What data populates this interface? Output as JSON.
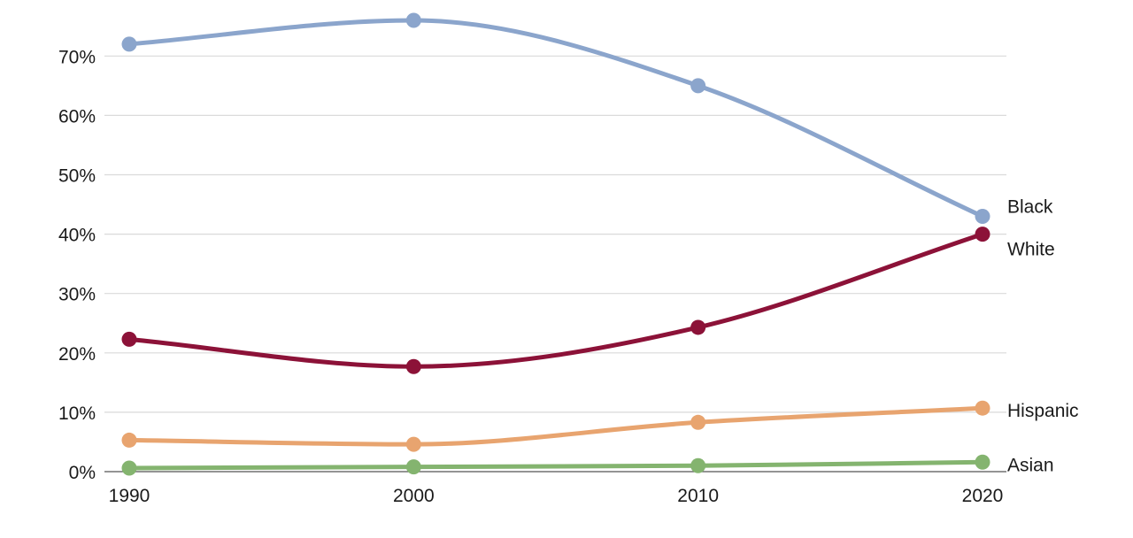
{
  "chart_data": {
    "type": "line",
    "title": "",
    "xlabel": "",
    "ylabel": "",
    "x": [
      1990,
      2000,
      2010,
      2020
    ],
    "x_tick_labels": [
      "1990",
      "2000",
      "2010",
      "2020"
    ],
    "ylim": [
      0,
      76
    ],
    "y_ticks": [
      0,
      10,
      20,
      30,
      40,
      50,
      60,
      70
    ],
    "y_tick_labels": [
      "0%",
      "10%",
      "20%",
      "30%",
      "40%",
      "50%",
      "60%",
      "70%"
    ],
    "grid": true,
    "legend": "inline labels at right end of each line",
    "series": [
      {
        "name": "Black",
        "color": "#8ba5cc",
        "values": [
          72,
          76,
          65,
          43
        ]
      },
      {
        "name": "White",
        "color": "#8c1238",
        "values": [
          22.3,
          17.7,
          24.3,
          40
        ]
      },
      {
        "name": "Hispanic",
        "color": "#e8a46f",
        "values": [
          5.3,
          4.6,
          8.3,
          10.7
        ]
      },
      {
        "name": "Asian",
        "color": "#84b46f",
        "values": [
          0.6,
          0.8,
          1.0,
          1.6
        ]
      }
    ]
  }
}
